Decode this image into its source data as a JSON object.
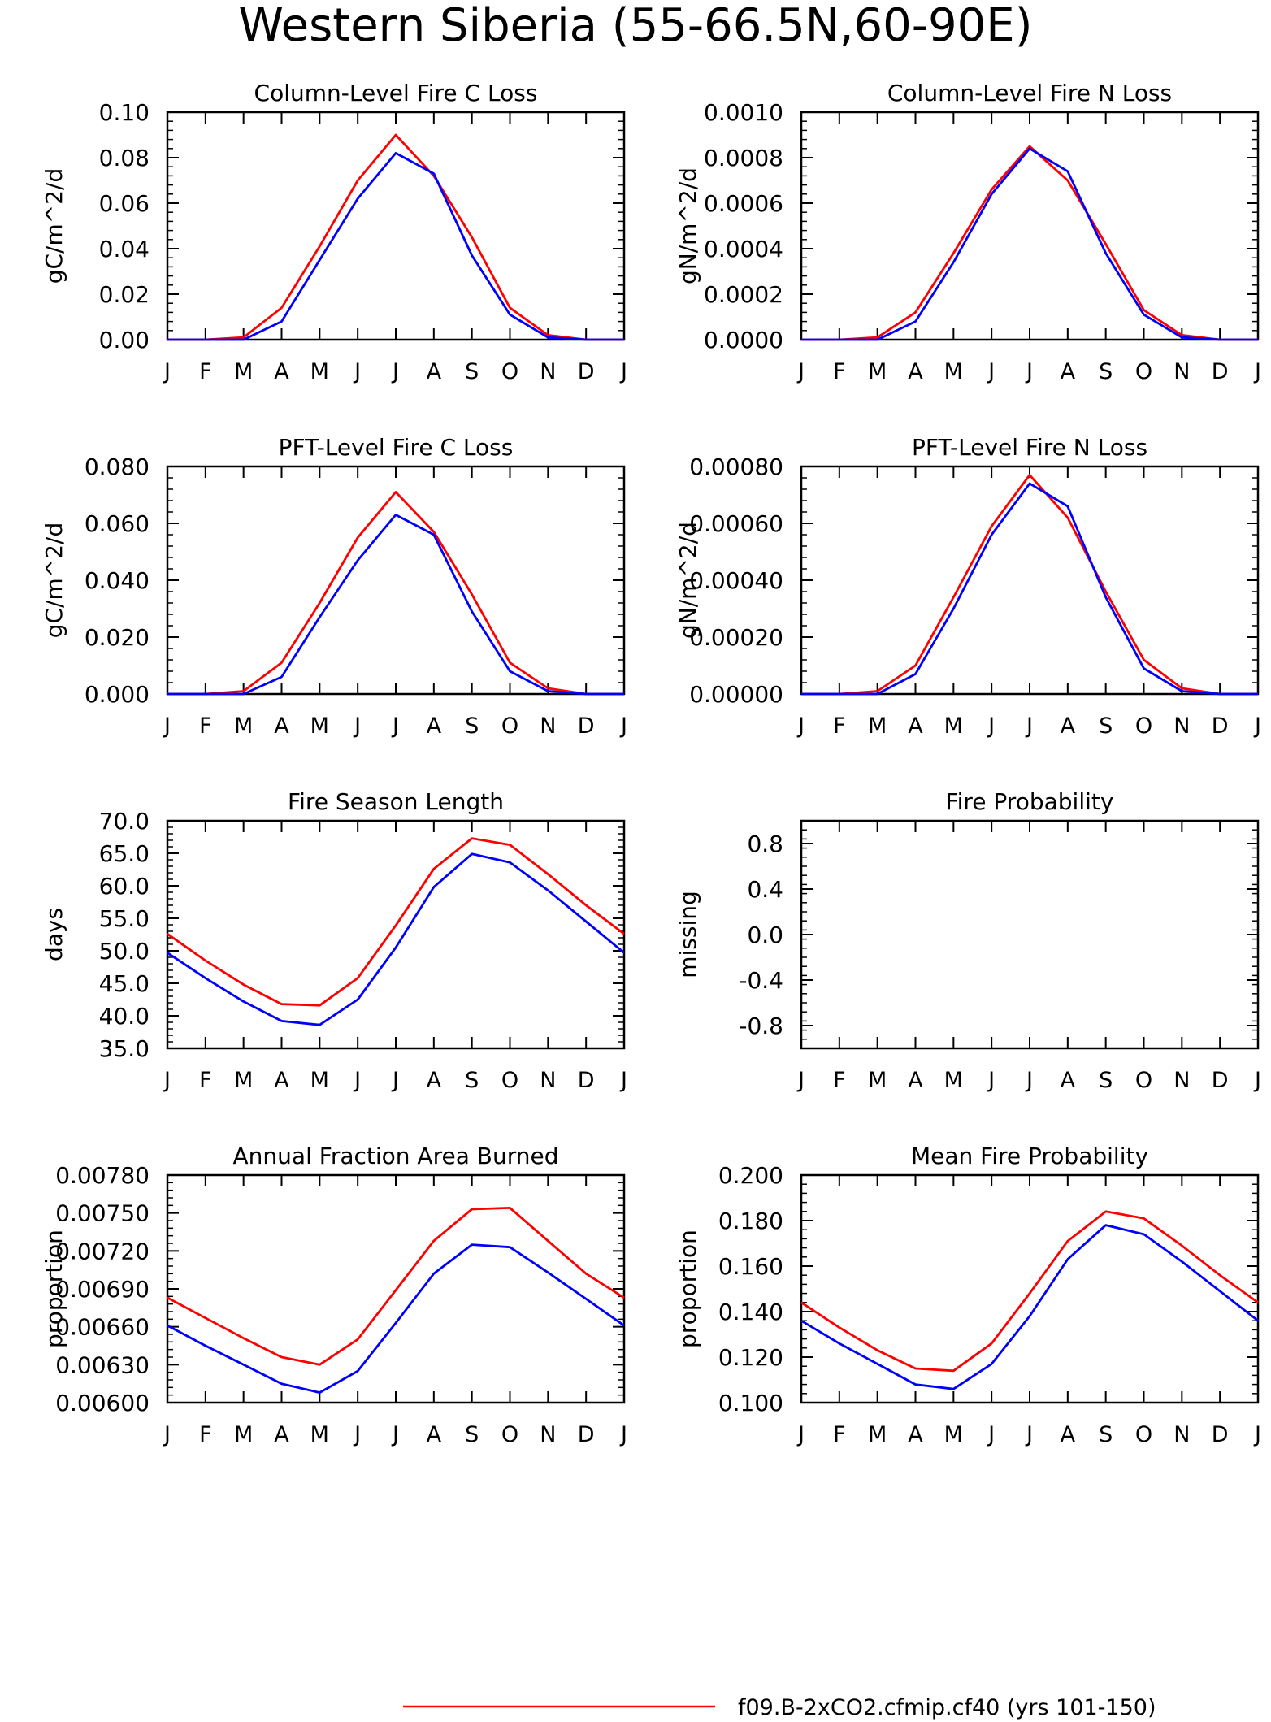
{
  "page_title": "Western Siberia (55-66.5N,60-90E)",
  "legend": {
    "entries": [
      {
        "label": "f09.B-2xCO2.cfmip.cf40 (yrs 101-150)",
        "color": "#ff0000"
      }
    ]
  },
  "months": [
    "J",
    "F",
    "M",
    "A",
    "M",
    "J",
    "J",
    "A",
    "S",
    "O",
    "N",
    "D",
    "J"
  ],
  "colors": {
    "red": "#ff0000",
    "blue": "#0000ff"
  },
  "chart_data": [
    {
      "type": "line",
      "title": "Column-Level Fire C Loss",
      "ylabel": "gC/m^2/d",
      "ylim": [
        0,
        0.1
      ],
      "yticks": [
        "0.00",
        "0.02",
        "0.04",
        "0.06",
        "0.08",
        "0.10"
      ],
      "series": [
        {
          "color": "red",
          "values": [
            0,
            0,
            0.001,
            0.014,
            0.041,
            0.07,
            0.09,
            0.072,
            0.045,
            0.014,
            0.002,
            0,
            0
          ]
        },
        {
          "color": "blue",
          "values": [
            0,
            0,
            0,
            0.008,
            0.035,
            0.062,
            0.082,
            0.073,
            0.037,
            0.011,
            0.001,
            0,
            0
          ]
        }
      ]
    },
    {
      "type": "line",
      "title": "Column-Level Fire N Loss",
      "ylabel": "gN/m^2/d",
      "ylim": [
        0,
        0.001
      ],
      "yticks": [
        "0.0000",
        "0.0002",
        "0.0004",
        "0.0006",
        "0.0008",
        "0.0010"
      ],
      "series": [
        {
          "color": "red",
          "values": [
            0,
            0,
            1e-05,
            0.00012,
            0.00038,
            0.00066,
            0.00085,
            0.0007,
            0.00042,
            0.00013,
            2e-05,
            0,
            0
          ]
        },
        {
          "color": "blue",
          "values": [
            0,
            0,
            0,
            8e-05,
            0.00034,
            0.00064,
            0.00084,
            0.00074,
            0.00038,
            0.00011,
            1e-05,
            0,
            0
          ]
        }
      ]
    },
    {
      "type": "line",
      "title": "PFT-Level Fire C Loss",
      "ylabel": "gC/m^2/d",
      "ylim": [
        0,
        0.08
      ],
      "yticks": [
        "0.000",
        "0.020",
        "0.040",
        "0.060",
        "0.080"
      ],
      "series": [
        {
          "color": "red",
          "values": [
            0,
            0,
            0.001,
            0.011,
            0.032,
            0.055,
            0.071,
            0.057,
            0.035,
            0.011,
            0.002,
            0,
            0
          ]
        },
        {
          "color": "blue",
          "values": [
            0,
            0,
            0,
            0.006,
            0.027,
            0.047,
            0.063,
            0.056,
            0.029,
            0.008,
            0.001,
            0,
            0
          ]
        }
      ]
    },
    {
      "type": "line",
      "title": "PFT-Level Fire N Loss",
      "ylabel": "gN/m^2/d",
      "ylim": [
        0,
        0.0008
      ],
      "yticks": [
        "0.00000",
        "0.00020",
        "0.00040",
        "0.00060",
        "0.00080"
      ],
      "series": [
        {
          "color": "red",
          "values": [
            0,
            0,
            1e-05,
            0.0001,
            0.00034,
            0.00059,
            0.00077,
            0.00062,
            0.00036,
            0.00012,
            2e-05,
            0,
            0
          ]
        },
        {
          "color": "blue",
          "values": [
            0,
            0,
            0,
            7e-05,
            0.0003,
            0.00056,
            0.00074,
            0.00066,
            0.00034,
            9e-05,
            1e-05,
            0,
            0
          ]
        }
      ]
    },
    {
      "type": "line",
      "title": "Fire Season Length",
      "ylabel": "days",
      "ylim": [
        35,
        70
      ],
      "yticks": [
        "35.0",
        "40.0",
        "45.0",
        "50.0",
        "55.0",
        "60.0",
        "65.0",
        "70.0"
      ],
      "series": [
        {
          "color": "red",
          "values": [
            52.6,
            48.5,
            44.8,
            41.8,
            41.6,
            45.8,
            53.9,
            62.6,
            67.3,
            66.3,
            61.8,
            57.0,
            52.6
          ]
        },
        {
          "color": "blue",
          "values": [
            49.7,
            45.8,
            42.2,
            39.2,
            38.6,
            42.5,
            50.5,
            59.8,
            64.9,
            63.6,
            59.3,
            54.5,
            49.7
          ]
        }
      ]
    },
    {
      "type": "line",
      "title": "Fire Probability",
      "ylabel": "missing",
      "ylim": [
        -1,
        1
      ],
      "yticks": [
        "-0.8",
        "-0.4",
        "0.0",
        "0.4",
        "0.8"
      ],
      "ytick_values": [
        -0.8,
        -0.4,
        0,
        0.4,
        0.8
      ],
      "series": []
    },
    {
      "type": "line",
      "title": "Annual Fraction Area Burned",
      "ylabel": "proportion",
      "ylim": [
        0.006,
        0.0078
      ],
      "yticks": [
        "0.00600",
        "0.00630",
        "0.00660",
        "0.00690",
        "0.00720",
        "0.00750",
        "0.00780"
      ],
      "series": [
        {
          "color": "red",
          "values": [
            0.00683,
            0.00667,
            0.00651,
            0.00636,
            0.0063,
            0.0065,
            0.00689,
            0.00728,
            0.00753,
            0.00754,
            0.00728,
            0.00702,
            0.00683
          ]
        },
        {
          "color": "blue",
          "values": [
            0.00661,
            0.00645,
            0.0063,
            0.00615,
            0.00608,
            0.00625,
            0.00663,
            0.00702,
            0.00725,
            0.00723,
            0.00703,
            0.00682,
            0.00661
          ]
        }
      ]
    },
    {
      "type": "line",
      "title": "Mean Fire Probability",
      "ylabel": "proportion",
      "ylim": [
        0.1,
        0.2
      ],
      "yticks": [
        "0.100",
        "0.120",
        "0.140",
        "0.160",
        "0.180",
        "0.200"
      ],
      "series": [
        {
          "color": "red",
          "values": [
            0.144,
            0.133,
            0.123,
            0.115,
            0.114,
            0.126,
            0.148,
            0.171,
            0.184,
            0.181,
            0.169,
            0.156,
            0.144
          ]
        },
        {
          "color": "blue",
          "values": [
            0.136,
            0.126,
            0.117,
            0.108,
            0.106,
            0.117,
            0.138,
            0.163,
            0.178,
            0.174,
            0.162,
            0.149,
            0.136
          ]
        }
      ]
    }
  ]
}
